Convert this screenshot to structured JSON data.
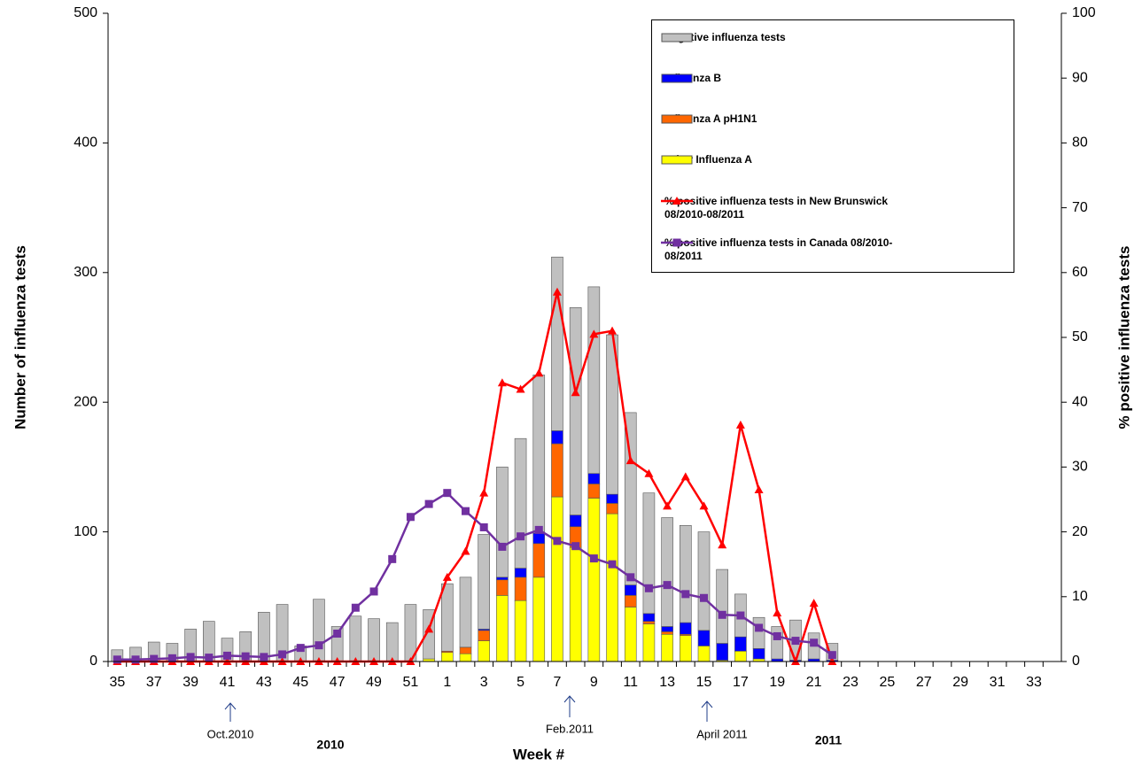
{
  "chart_data": {
    "type": "bar",
    "categories": [
      "35",
      null,
      "37",
      null,
      "39",
      null,
      "41",
      null,
      "43",
      null,
      "45",
      null,
      "47",
      null,
      "49",
      null,
      "51",
      null,
      "1",
      null,
      "3",
      null,
      "5",
      null,
      "7",
      null,
      "9",
      null,
      "11",
      null,
      "13",
      null,
      "15",
      null,
      "17",
      null,
      "19",
      null,
      "21",
      null,
      "23",
      null,
      "25",
      null,
      "27",
      null,
      "29",
      null,
      "31",
      null,
      "33",
      null
    ],
    "series": [
      {
        "name": "Negative influenza tests",
        "type": "bar",
        "color": "#c0c0c0",
        "values": [
          9,
          11,
          15,
          14,
          25,
          31,
          18,
          23,
          38,
          44,
          12,
          48,
          27,
          35,
          33,
          30,
          44,
          38,
          52,
          54,
          73,
          85,
          100,
          122,
          134,
          160,
          144,
          123,
          133,
          93,
          84,
          75,
          76,
          57,
          33,
          24,
          25,
          31,
          20,
          13,
          0,
          0,
          0,
          0,
          0,
          0,
          0,
          0,
          0,
          0,
          0,
          0
        ]
      },
      {
        "name": "Influenza B",
        "type": "bar",
        "color": "#0000ff",
        "values": [
          0,
          0,
          0,
          0,
          0,
          0,
          0,
          0,
          0,
          0,
          0,
          0,
          0,
          0,
          0,
          0,
          0,
          0,
          0,
          0,
          1,
          2,
          7,
          8,
          10,
          9,
          8,
          7,
          8,
          6,
          4,
          9,
          12,
          13,
          11,
          8,
          2,
          1,
          2,
          1,
          0,
          0,
          0,
          0,
          0,
          0,
          0,
          0,
          0,
          0,
          0,
          0
        ]
      },
      {
        "name": "Influenza A pH1N1",
        "type": "bar",
        "color": "#ff6600",
        "values": [
          0,
          0,
          0,
          0,
          0,
          0,
          0,
          0,
          0,
          0,
          0,
          0,
          0,
          0,
          0,
          0,
          0,
          0,
          1,
          5,
          8,
          12,
          18,
          26,
          41,
          16,
          11,
          8,
          9,
          2,
          2,
          1,
          0,
          0,
          0,
          0,
          0,
          0,
          0,
          0,
          0,
          0,
          0,
          0,
          0,
          0,
          0,
          0,
          0,
          0,
          0,
          0
        ]
      },
      {
        "name": "Other Influenza A",
        "type": "bar",
        "color": "#ffff00",
        "values": [
          0,
          0,
          0,
          0,
          0,
          0,
          0,
          0,
          0,
          0,
          0,
          0,
          0,
          0,
          0,
          0,
          0,
          2,
          7,
          6,
          16,
          51,
          47,
          65,
          127,
          88,
          126,
          114,
          42,
          29,
          21,
          20,
          12,
          1,
          8,
          2,
          0,
          0,
          0,
          0,
          0,
          0,
          0,
          0,
          0,
          0,
          0,
          0,
          0,
          0,
          0,
          0
        ]
      },
      {
        "name": "% positive influenza tests  in New Brunswick 08/2010-08/2011",
        "type": "line",
        "marker": "triangle",
        "axis": "y2",
        "color": "#ff0000",
        "values": [
          0,
          0,
          0,
          0,
          0,
          0,
          0,
          0,
          0,
          0,
          0,
          0,
          0,
          0,
          0,
          0,
          0,
          5,
          13,
          17,
          26,
          43,
          42,
          44.5,
          57,
          41.5,
          50.5,
          51,
          31,
          29,
          24,
          28.5,
          24,
          18,
          36.5,
          26.5,
          7.5,
          0,
          9,
          0,
          null,
          null,
          null,
          null,
          null,
          null,
          null,
          null,
          null,
          null,
          null,
          null
        ]
      },
      {
        "name": "% positive influenza tests  in Canada 08/2010-08/2011",
        "type": "line",
        "marker": "square",
        "axis": "y2",
        "color": "#7030a0",
        "values": [
          0.3,
          0.3,
          0.4,
          0.5,
          0.7,
          0.6,
          0.9,
          0.8,
          0.7,
          1.1,
          2.1,
          2.5,
          4.3,
          8.3,
          10.8,
          15.8,
          22.3,
          24.3,
          26,
          23.2,
          20.7,
          17.7,
          19.3,
          20.3,
          18.6,
          17.8,
          15.9,
          15,
          13,
          11.3,
          11.8,
          10.4,
          9.8,
          7.2,
          7.1,
          5.2,
          3.9,
          3.2,
          2.9,
          1,
          null,
          null,
          null,
          null,
          null,
          null,
          null,
          null,
          null,
          null,
          null,
          null
        ]
      }
    ],
    "ylim": [
      0,
      500
    ],
    "yticks": [
      0,
      100,
      200,
      300,
      400,
      500
    ],
    "y2lim": [
      0,
      100
    ],
    "y2ticks": [
      0,
      10,
      20,
      30,
      40,
      50,
      60,
      70,
      80,
      90,
      100
    ],
    "ylabel": "Number of influenza tests",
    "y2label": "% positive influenza tests",
    "xlabel": "Week #",
    "annotations": [
      "Oct.2010",
      "Feb.2011",
      "April 2011",
      "2010",
      "2011"
    ],
    "legend": "top-right"
  }
}
